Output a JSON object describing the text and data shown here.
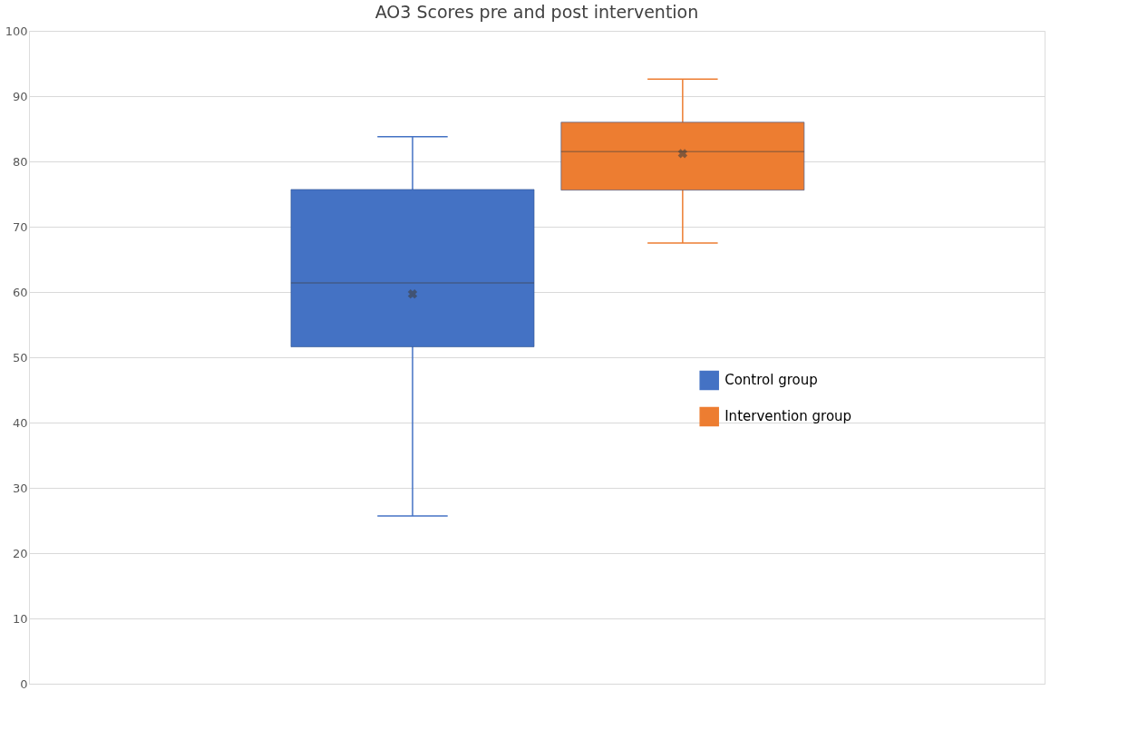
{
  "chart_data": {
    "type": "box",
    "title": "AO3 Scores pre and post intervention",
    "categories": [
      null
    ],
    "series": [
      {
        "name": "Control group",
        "color": "#4472c4",
        "boxes": [
          {
            "low": 25.7,
            "q1": 51.6,
            "median": 61.4,
            "q3": 75.7,
            "high": 83.8,
            "mean": 59.7
          }
        ]
      },
      {
        "name": "Intervention group",
        "color": "#ed7d31",
        "boxes": [
          {
            "low": 67.5,
            "q1": 75.6,
            "median": 81.5,
            "q3": 86.0,
            "high": 92.6,
            "mean": 81.2
          }
        ]
      }
    ],
    "ylim": [
      0,
      100
    ],
    "yticks": [
      0,
      10,
      20,
      30,
      40,
      50,
      60,
      70,
      80,
      90,
      100
    ],
    "grid": "y",
    "legend": "right",
    "tick_labels": "y"
  }
}
